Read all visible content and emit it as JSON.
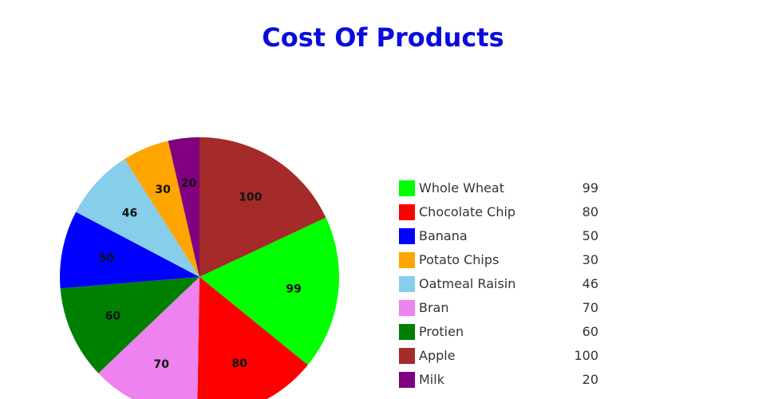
{
  "chart_data": {
    "type": "pie",
    "title": "Cost Of Products",
    "slices": [
      {
        "name": "Apple",
        "value": 100,
        "color": "#a52a2a"
      },
      {
        "name": "Whole Wheat",
        "value": 99,
        "color": "#00ff00"
      },
      {
        "name": "Chocolate Chip",
        "value": 80,
        "color": "#ff0000"
      },
      {
        "name": "Bran",
        "value": 70,
        "color": "#ee82ee"
      },
      {
        "name": "Protien",
        "value": 60,
        "color": "#008000"
      },
      {
        "name": "Banana",
        "value": 50,
        "color": "#0000ff"
      },
      {
        "name": "Oatmeal Raisin",
        "value": 46,
        "color": "#87ceeb"
      },
      {
        "name": "Potato Chips",
        "value": 30,
        "color": "#ffa500"
      },
      {
        "name": "Milk",
        "value": 20,
        "color": "#800080"
      }
    ],
    "legend": [
      {
        "name": "Whole Wheat",
        "value": "99",
        "color": "#00ff00"
      },
      {
        "name": "Chocolate Chip",
        "value": "80",
        "color": "#ff0000"
      },
      {
        "name": "Banana",
        "value": "50",
        "color": "#0000ff"
      },
      {
        "name": "Potato Chips",
        "value": "30",
        "color": "#ffa500"
      },
      {
        "name": "Oatmeal Raisin",
        "value": "46",
        "color": "#87ceeb"
      },
      {
        "name": "Bran",
        "value": "70",
        "color": "#ee82ee"
      },
      {
        "name": "Protien",
        "value": "60",
        "color": "#008000"
      },
      {
        "name": "Apple",
        "value": "100",
        "color": "#a52a2a"
      },
      {
        "name": "Milk",
        "value": "20",
        "color": "#800080"
      }
    ],
    "legend_position": "right"
  }
}
